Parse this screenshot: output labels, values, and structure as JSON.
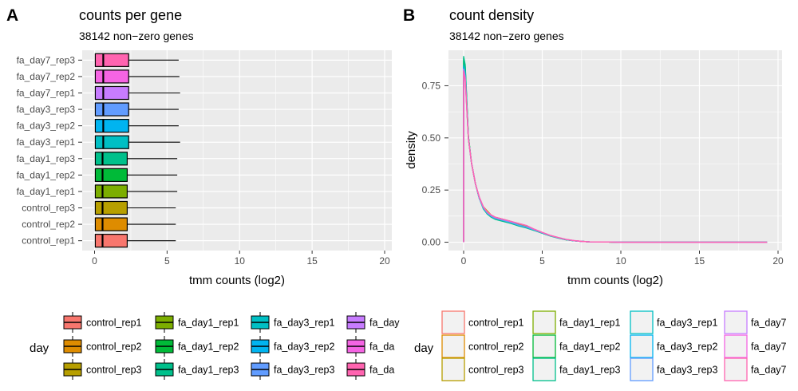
{
  "chart_data": [
    {
      "panel": "A",
      "type": "boxplot",
      "title": "counts per gene",
      "subtitle": "38142 non−zero genes",
      "xlabel": "tmm counts (log2)",
      "ylabel": "",
      "xlim": [
        0,
        20
      ],
      "xticks": [
        "0",
        "5",
        "10",
        "15",
        "20"
      ],
      "grid": true,
      "categories": [
        "control_rep1",
        "control_rep2",
        "control_rep3",
        "fa_day1_rep1",
        "fa_day1_rep2",
        "fa_day1_rep3",
        "fa_day3_rep1",
        "fa_day3_rep2",
        "fa_day3_rep3",
        "fa_day7_rep1",
        "fa_day7_rep2",
        "fa_day7_rep3"
      ],
      "boxes": [
        {
          "name": "control_rep1",
          "q1": 0.05,
          "median": 0.55,
          "q3": 2.25,
          "whisker_low": 0,
          "whisker_high": 5.6,
          "color": "#F8766D"
        },
        {
          "name": "control_rep2",
          "q1": 0.05,
          "median": 0.55,
          "q3": 2.25,
          "whisker_low": 0,
          "whisker_high": 5.6,
          "color": "#DE8C00"
        },
        {
          "name": "control_rep3",
          "q1": 0.05,
          "median": 0.55,
          "q3": 2.25,
          "whisker_low": 0,
          "whisker_high": 5.6,
          "color": "#B79F00"
        },
        {
          "name": "fa_day1_rep1",
          "q1": 0.05,
          "median": 0.55,
          "q3": 2.25,
          "whisker_low": 0,
          "whisker_high": 5.7,
          "color": "#7CAE00"
        },
        {
          "name": "fa_day1_rep2",
          "q1": 0.05,
          "median": 0.55,
          "q3": 2.25,
          "whisker_low": 0,
          "whisker_high": 5.7,
          "color": "#00BA38"
        },
        {
          "name": "fa_day1_rep3",
          "q1": 0.05,
          "median": 0.55,
          "q3": 2.25,
          "whisker_low": 0,
          "whisker_high": 5.7,
          "color": "#00C08B"
        },
        {
          "name": "fa_day3_rep1",
          "q1": 0.05,
          "median": 0.6,
          "q3": 2.35,
          "whisker_low": 0,
          "whisker_high": 5.9,
          "color": "#00BFC4"
        },
        {
          "name": "fa_day3_rep2",
          "q1": 0.05,
          "median": 0.6,
          "q3": 2.35,
          "whisker_low": 0,
          "whisker_high": 5.8,
          "color": "#00B4F0"
        },
        {
          "name": "fa_day3_rep3",
          "q1": 0.05,
          "median": 0.6,
          "q3": 2.35,
          "whisker_low": 0,
          "whisker_high": 5.8,
          "color": "#619CFF"
        },
        {
          "name": "fa_day7_rep1",
          "q1": 0.05,
          "median": 0.6,
          "q3": 2.35,
          "whisker_low": 0,
          "whisker_high": 5.9,
          "color": "#C77CFF"
        },
        {
          "name": "fa_day7_rep2",
          "q1": 0.05,
          "median": 0.6,
          "q3": 2.35,
          "whisker_low": 0,
          "whisker_high": 5.85,
          "color": "#F564E3"
        },
        {
          "name": "fa_day7_rep3",
          "q1": 0.05,
          "median": 0.6,
          "q3": 2.35,
          "whisker_low": 0,
          "whisker_high": 5.8,
          "color": "#FF64B0"
        }
      ],
      "legend": {
        "title": "day",
        "placement": "bottom",
        "entries": [
          "control_rep1",
          "control_rep2",
          "control_rep3",
          "fa_day1_rep1",
          "fa_day1_rep2",
          "fa_day1_rep3",
          "fa_day3_rep1",
          "fa_day3_rep2",
          "fa_day3_rep3",
          "fa_day",
          "fa_da",
          "fa_da"
        ]
      }
    },
    {
      "panel": "B",
      "type": "density",
      "title": "count density",
      "subtitle": "38142 non−zero genes",
      "xlabel": "tmm counts (log2)",
      "ylabel": "density",
      "xlim": [
        -0.6,
        19.8
      ],
      "ylim": [
        -0.04,
        0.92
      ],
      "xticks": [
        "0",
        "5",
        "10",
        "15",
        "20"
      ],
      "yticks": [
        "0.00",
        "0.25",
        "0.50",
        "0.75"
      ],
      "grid": true,
      "x": [
        0,
        0.1,
        0.2,
        0.3,
        0.5,
        0.75,
        1,
        1.25,
        1.5,
        1.75,
        2,
        2.5,
        3,
        3.5,
        4,
        4.5,
        5,
        5.5,
        6,
        6.5,
        7,
        7.5,
        8,
        9,
        10,
        12,
        15,
        19.3
      ],
      "series": [
        {
          "name": "control_rep1",
          "color": "#F8766D",
          "values": [
            0.84,
            0.8,
            0.65,
            0.5,
            0.38,
            0.28,
            0.21,
            0.17,
            0.15,
            0.13,
            0.12,
            0.11,
            0.1,
            0.085,
            0.075,
            0.06,
            0.045,
            0.032,
            0.022,
            0.013,
            0.007,
            0.004,
            0.002,
            0.001,
            0,
            0,
            0,
            0
          ]
        },
        {
          "name": "control_rep2",
          "color": "#DE8C00",
          "values": [
            0.85,
            0.81,
            0.66,
            0.5,
            0.38,
            0.28,
            0.21,
            0.17,
            0.15,
            0.13,
            0.12,
            0.11,
            0.1,
            0.085,
            0.076,
            0.06,
            0.046,
            0.032,
            0.022,
            0.013,
            0.007,
            0.004,
            0.002,
            0.001,
            0,
            0,
            0,
            0
          ]
        },
        {
          "name": "control_rep3",
          "color": "#B79F00",
          "values": [
            0.85,
            0.81,
            0.66,
            0.5,
            0.38,
            0.28,
            0.21,
            0.17,
            0.15,
            0.13,
            0.12,
            0.11,
            0.1,
            0.086,
            0.076,
            0.06,
            0.046,
            0.032,
            0.022,
            0.013,
            0.007,
            0.004,
            0.002,
            0.001,
            0,
            0,
            0,
            0
          ]
        },
        {
          "name": "fa_day1_rep1",
          "color": "#7CAE00",
          "values": [
            0.87,
            0.83,
            0.67,
            0.51,
            0.38,
            0.28,
            0.21,
            0.165,
            0.14,
            0.125,
            0.115,
            0.105,
            0.095,
            0.08,
            0.07,
            0.058,
            0.044,
            0.031,
            0.021,
            0.012,
            0.007,
            0.004,
            0.002,
            0.001,
            0,
            0,
            0,
            0
          ]
        },
        {
          "name": "fa_day1_rep2",
          "color": "#00BA38",
          "values": [
            0.88,
            0.84,
            0.68,
            0.51,
            0.38,
            0.28,
            0.21,
            0.165,
            0.14,
            0.125,
            0.115,
            0.105,
            0.095,
            0.08,
            0.07,
            0.058,
            0.044,
            0.031,
            0.021,
            0.012,
            0.007,
            0.004,
            0.002,
            0.001,
            0,
            0,
            0,
            0
          ]
        },
        {
          "name": "fa_day1_rep3",
          "color": "#00C08B",
          "values": [
            0.89,
            0.85,
            0.68,
            0.51,
            0.38,
            0.28,
            0.21,
            0.16,
            0.135,
            0.12,
            0.11,
            0.1,
            0.09,
            0.078,
            0.068,
            0.056,
            0.043,
            0.03,
            0.02,
            0.012,
            0.007,
            0.004,
            0.002,
            0.001,
            0,
            0,
            0,
            0
          ]
        },
        {
          "name": "fa_day3_rep1",
          "color": "#00BFC4",
          "values": [
            0.85,
            0.81,
            0.66,
            0.5,
            0.38,
            0.28,
            0.21,
            0.165,
            0.14,
            0.125,
            0.115,
            0.105,
            0.095,
            0.082,
            0.072,
            0.059,
            0.045,
            0.032,
            0.022,
            0.013,
            0.007,
            0.004,
            0.002,
            0.001,
            0,
            0,
            0,
            0
          ]
        },
        {
          "name": "fa_day3_rep2",
          "color": "#00B4F0",
          "values": [
            0.84,
            0.8,
            0.65,
            0.5,
            0.38,
            0.28,
            0.21,
            0.165,
            0.14,
            0.125,
            0.115,
            0.105,
            0.095,
            0.082,
            0.072,
            0.059,
            0.045,
            0.032,
            0.022,
            0.013,
            0.007,
            0.004,
            0.002,
            0.001,
            0,
            0,
            0,
            0
          ]
        },
        {
          "name": "fa_day3_rep3",
          "color": "#619CFF",
          "values": [
            0.83,
            0.79,
            0.65,
            0.5,
            0.38,
            0.28,
            0.21,
            0.165,
            0.14,
            0.125,
            0.115,
            0.105,
            0.095,
            0.082,
            0.072,
            0.059,
            0.045,
            0.032,
            0.022,
            0.013,
            0.007,
            0.004,
            0.002,
            0.001,
            0,
            0,
            0,
            0
          ]
        },
        {
          "name": "fa_day7_rep1",
          "color": "#C77CFF",
          "values": [
            0.83,
            0.79,
            0.65,
            0.5,
            0.38,
            0.28,
            0.215,
            0.17,
            0.145,
            0.13,
            0.12,
            0.11,
            0.1,
            0.09,
            0.08,
            0.062,
            0.047,
            0.033,
            0.023,
            0.014,
            0.008,
            0.004,
            0.002,
            0.001,
            0,
            0,
            0,
            0
          ]
        },
        {
          "name": "fa_day7_rep2",
          "color": "#F564E3",
          "values": [
            0.82,
            0.78,
            0.64,
            0.5,
            0.38,
            0.28,
            0.215,
            0.17,
            0.145,
            0.13,
            0.12,
            0.11,
            0.1,
            0.09,
            0.08,
            0.062,
            0.047,
            0.033,
            0.023,
            0.014,
            0.008,
            0.004,
            0.002,
            0.001,
            0,
            0,
            0,
            0
          ]
        },
        {
          "name": "fa_day7_rep3",
          "color": "#FF64B0",
          "values": [
            0.82,
            0.78,
            0.64,
            0.5,
            0.38,
            0.28,
            0.215,
            0.17,
            0.145,
            0.13,
            0.12,
            0.11,
            0.1,
            0.09,
            0.08,
            0.062,
            0.047,
            0.033,
            0.023,
            0.014,
            0.008,
            0.004,
            0.002,
            0.001,
            0,
            0,
            0,
            0
          ]
        }
      ],
      "legend": {
        "title": "day",
        "placement": "bottom",
        "entries": [
          "control_rep1",
          "control_rep2",
          "control_rep3",
          "fa_day1_rep1",
          "fa_day1_rep2",
          "fa_day1_rep3",
          "fa_day3_rep1",
          "fa_day3_rep2",
          "fa_day3_rep3",
          "fa_day7",
          "fa_day7",
          "fa_day7"
        ]
      }
    }
  ]
}
